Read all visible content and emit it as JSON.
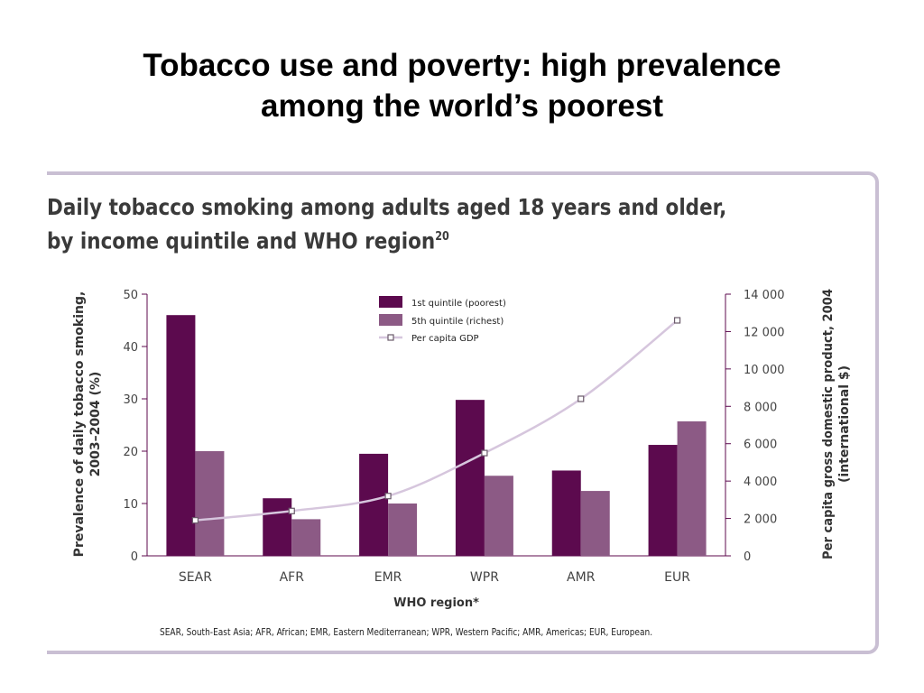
{
  "slide": {
    "title_line1": "Tobacco use and poverty: high prevalence",
    "title_line2": "among the world’s poorest"
  },
  "figure": {
    "title_line1": "Daily tobacco smoking among adults aged 18 years and older,",
    "title_line2": "by income quintile and WHO region",
    "title_ref": "20",
    "footnote": "SEAR, South-East Asia; AFR, African; EMR, Eastern Mediterranean; WPR, Western Pacific; AMR, Americas; EUR, European."
  },
  "chart_data": {
    "type": "bar",
    "categories": [
      "SEAR",
      "AFR",
      "EMR",
      "WPR",
      "AMR",
      "EUR"
    ],
    "xlabel": "WHO region*",
    "ylabel_left_line1": "Prevalence of daily tobacco smoking,",
    "ylabel_left_line2": "2003–2004 (%)",
    "ylabel_right_line1": "Per capita gross domestic product, 2004",
    "ylabel_right_line2": "(international $)",
    "ylim_left": [
      0,
      50
    ],
    "yticks_left": [
      "0",
      "10",
      "20",
      "30",
      "40",
      "50"
    ],
    "ylim_right": [
      0,
      14000
    ],
    "yticks_right": [
      "0",
      "2 000",
      "4 000",
      "6 000",
      "8 000",
      "10 000",
      "12 000",
      "14 000"
    ],
    "series": [
      {
        "name": "1st quintile (poorest)",
        "values": [
          46,
          11,
          19.5,
          29.8,
          16.3,
          21.2
        ],
        "color": "#5c0a4e"
      },
      {
        "name": "5th quintile (richest)",
        "values": [
          20,
          7,
          10,
          15.3,
          12.4,
          25.7
        ],
        "color": "#8c5a85"
      }
    ],
    "line_series": {
      "name": "Per capita GDP",
      "values": [
        1900,
        2400,
        3200,
        5500,
        8400,
        12600
      ],
      "color": "#d6c6dd"
    },
    "legend_position": "top"
  }
}
